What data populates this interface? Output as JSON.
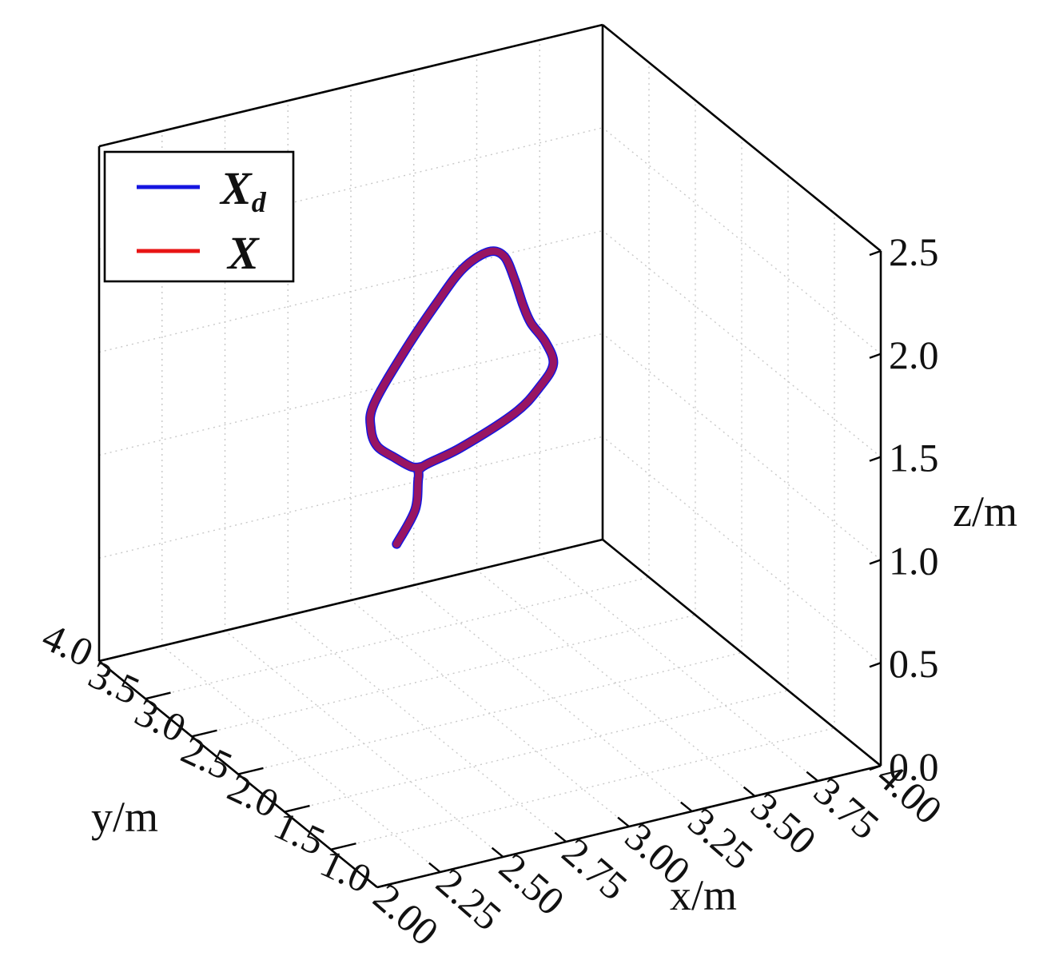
{
  "chart_data": {
    "type": "line",
    "title": "",
    "xlabel": "x/m",
    "ylabel": "y/m",
    "zlabel": "z/m",
    "xlim": [
      2.0,
      4.0
    ],
    "ylim": [
      1.0,
      4.0
    ],
    "zlim": [
      0.0,
      2.5
    ],
    "x_ticks": [
      "2.00",
      "2.25",
      "2.50",
      "2.75",
      "3.00",
      "3.25",
      "3.50",
      "3.75",
      "4.00"
    ],
    "y_ticks": [
      "1.0",
      "1.5",
      "2.0",
      "2.5",
      "3.0",
      "3.5",
      "4.0"
    ],
    "z_ticks": [
      "0.0",
      "0.5",
      "1.0",
      "1.5",
      "2.0",
      "2.5"
    ],
    "grid": true,
    "legend_position": "top-left",
    "series": [
      {
        "name": "X",
        "name_subscript": "d",
        "color": "#1515e0",
        "points": [
          [
            2.6,
            2.42,
            0.97
          ],
          [
            2.74,
            2.6,
            1.03
          ],
          [
            2.76,
            2.62,
            1.17
          ],
          [
            2.77,
            2.6,
            1.23
          ],
          [
            2.9,
            2.55,
            1.3
          ],
          [
            3.1,
            2.5,
            1.43
          ],
          [
            3.2,
            2.5,
            1.53
          ],
          [
            3.27,
            2.55,
            1.6
          ],
          [
            3.25,
            2.58,
            1.7
          ],
          [
            3.2,
            2.6,
            1.8
          ],
          [
            3.15,
            2.55,
            1.92
          ],
          [
            3.08,
            2.45,
            2.1
          ],
          [
            3.02,
            2.4,
            2.25
          ],
          [
            2.95,
            2.38,
            2.3
          ],
          [
            2.85,
            2.38,
            2.25
          ],
          [
            2.75,
            2.38,
            2.12
          ],
          [
            2.62,
            2.4,
            1.9
          ],
          [
            2.52,
            2.45,
            1.66
          ],
          [
            2.52,
            2.48,
            1.53
          ],
          [
            2.56,
            2.52,
            1.42
          ],
          [
            2.64,
            2.55,
            1.33
          ],
          [
            2.72,
            2.58,
            1.25
          ],
          [
            2.77,
            2.6,
            1.23
          ]
        ]
      },
      {
        "name": "X",
        "color": "#e81515",
        "points": [
          [
            2.6,
            2.42,
            0.97
          ],
          [
            2.74,
            2.6,
            1.03
          ],
          [
            2.76,
            2.62,
            1.17
          ],
          [
            2.77,
            2.6,
            1.23
          ],
          [
            2.9,
            2.55,
            1.3
          ],
          [
            3.1,
            2.5,
            1.43
          ],
          [
            3.2,
            2.5,
            1.53
          ],
          [
            3.27,
            2.55,
            1.6
          ],
          [
            3.25,
            2.58,
            1.7
          ],
          [
            3.2,
            2.6,
            1.8
          ],
          [
            3.15,
            2.55,
            1.92
          ],
          [
            3.08,
            2.45,
            2.1
          ],
          [
            3.02,
            2.4,
            2.25
          ],
          [
            2.95,
            2.38,
            2.3
          ],
          [
            2.85,
            2.38,
            2.25
          ],
          [
            2.75,
            2.38,
            2.12
          ],
          [
            2.62,
            2.4,
            1.9
          ],
          [
            2.52,
            2.45,
            1.66
          ],
          [
            2.52,
            2.48,
            1.53
          ],
          [
            2.56,
            2.52,
            1.42
          ],
          [
            2.64,
            2.55,
            1.33
          ],
          [
            2.72,
            2.58,
            1.25
          ],
          [
            2.77,
            2.6,
            1.23
          ]
        ]
      }
    ]
  }
}
